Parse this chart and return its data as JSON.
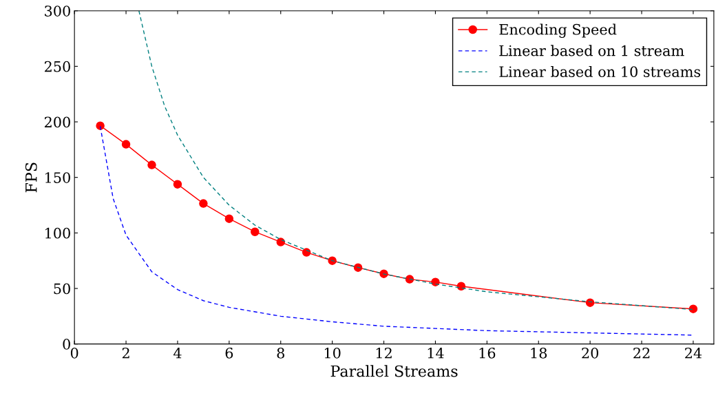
{
  "chart_data": {
    "type": "line",
    "xlabel": "Parallel Streams",
    "ylabel": "FPS",
    "xlim": [
      0,
      24.8
    ],
    "ylim": [
      0,
      300
    ],
    "xticks": [
      0,
      2,
      4,
      6,
      8,
      10,
      12,
      14,
      16,
      18,
      20,
      22,
      24
    ],
    "yticks": [
      0,
      50,
      100,
      150,
      200,
      250,
      300
    ],
    "grid": false,
    "legend": "top right",
    "series": [
      {
        "name": "Encoding Speed",
        "color": "#ff0000",
        "marker": "circle",
        "line_style": "solid",
        "x": [
          1,
          2,
          3,
          4,
          5,
          6,
          7,
          8,
          9,
          10,
          11,
          12,
          13,
          14,
          15,
          20,
          24
        ],
        "values": [
          196.5,
          179.8,
          161.2,
          143.8,
          126.5,
          112.8,
          101,
          91.8,
          82.5,
          75,
          68.8,
          63.2,
          58.3,
          55.8,
          52,
          37.2,
          31.6
        ]
      },
      {
        "name": "Linear based on 1 stream",
        "color": "#0000ff",
        "marker": "none",
        "line_style": "dashed",
        "x": [
          1,
          1.5,
          2,
          3,
          4,
          5,
          6,
          8,
          10,
          12,
          14,
          16,
          20,
          24
        ],
        "values": [
          196,
          131,
          98,
          65,
          49,
          39,
          33,
          25,
          20,
          16,
          14,
          12,
          10,
          8
        ]
      },
      {
        "name": "Linear based on 10 streams",
        "color": "#008080",
        "marker": "none",
        "line_style": "dashed",
        "x": [
          2.5,
          3,
          3.5,
          4,
          5,
          6,
          7,
          8,
          10,
          12,
          14,
          16,
          20,
          24
        ],
        "values": [
          300,
          250,
          214,
          188,
          150,
          125,
          107,
          94,
          75,
          63,
          54,
          47,
          38,
          31
        ]
      }
    ]
  }
}
